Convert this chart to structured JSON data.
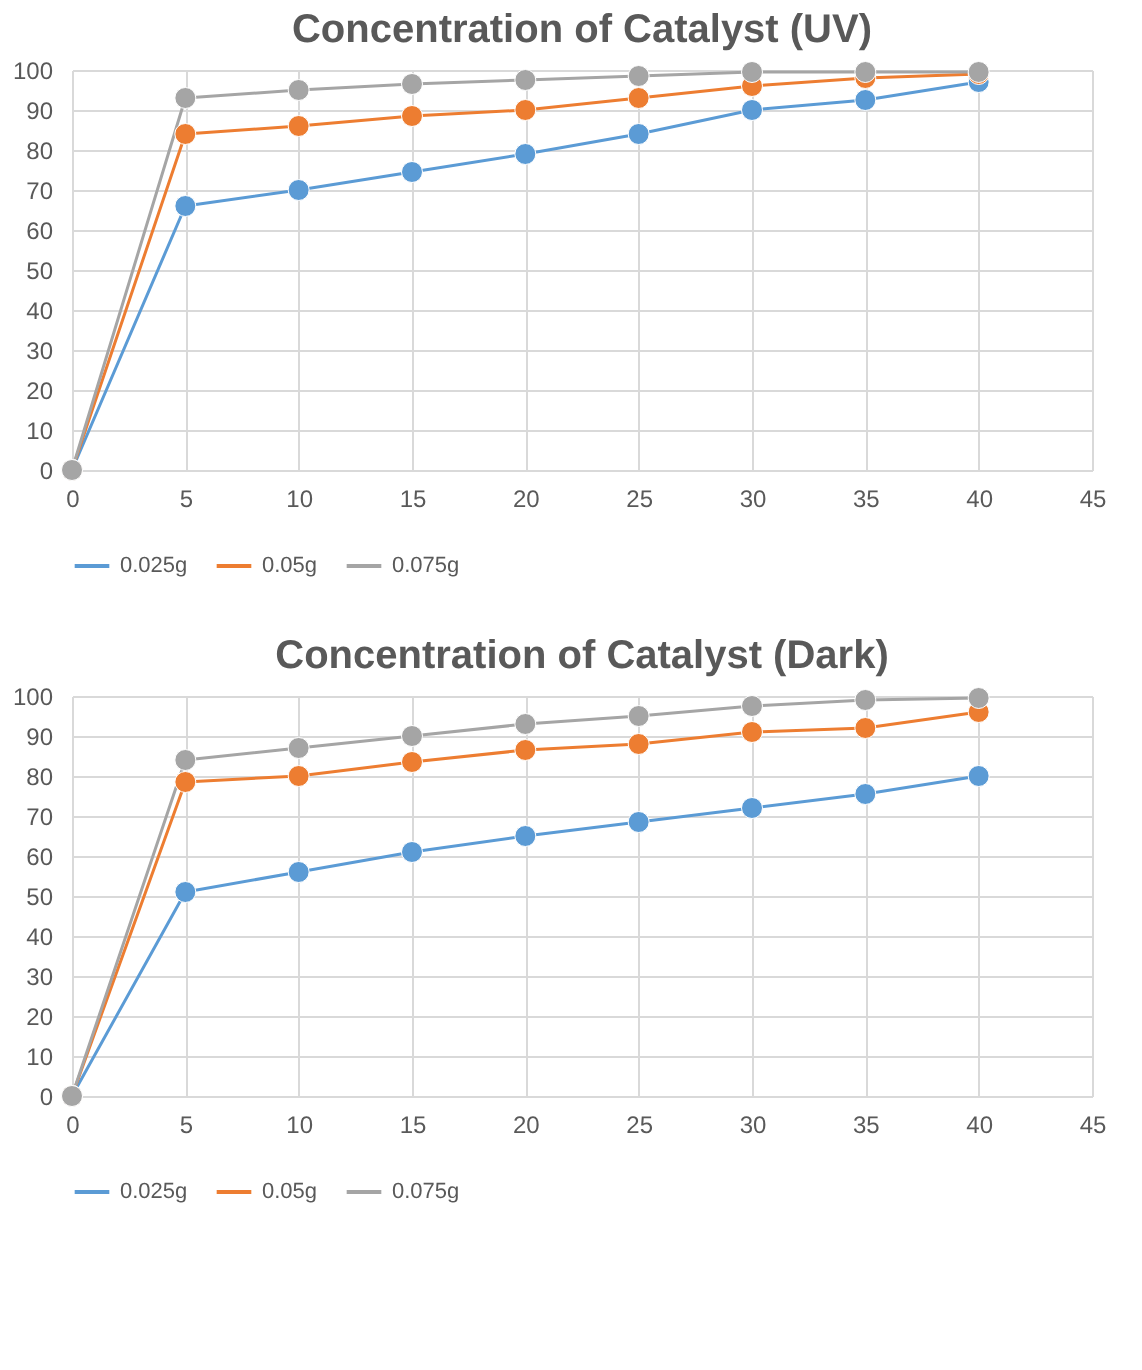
{
  "chart_data": [
    {
      "type": "line",
      "title": "Concentration of Catalyst (UV)",
      "x": [
        0,
        5,
        10,
        15,
        20,
        25,
        30,
        35,
        40
      ],
      "xlim": [
        0,
        45
      ],
      "xticks": [
        0,
        5,
        10,
        15,
        20,
        25,
        30,
        35,
        40,
        45
      ],
      "ylim": [
        0,
        100
      ],
      "yticks": [
        0,
        10,
        20,
        30,
        40,
        50,
        60,
        70,
        80,
        90,
        100
      ],
      "grid": true,
      "legend": "bottom",
      "marker": "circle",
      "line_style": "solid",
      "series": [
        {
          "name": "0.025g",
          "color": "#5b9bd5",
          "values": [
            0,
            66,
            70,
            74.5,
            79,
            84,
            90,
            92.5,
            97
          ]
        },
        {
          "name": "0.05g",
          "color": "#ed7d31",
          "values": [
            0,
            84,
            86,
            88.5,
            90,
            93,
            96,
            98,
            99
          ]
        },
        {
          "name": "0.075g",
          "color": "#a5a5a5",
          "values": [
            0,
            93,
            95,
            96.5,
            97.5,
            98.5,
            99.5,
            99.5,
            99.5
          ]
        }
      ]
    },
    {
      "type": "line",
      "title": "Concentration of Catalyst (Dark)",
      "x": [
        0,
        5,
        10,
        15,
        20,
        25,
        30,
        35,
        40
      ],
      "xlim": [
        0,
        45
      ],
      "xticks": [
        0,
        5,
        10,
        15,
        20,
        25,
        30,
        35,
        40,
        45
      ],
      "ylim": [
        0,
        100
      ],
      "yticks": [
        0,
        10,
        20,
        30,
        40,
        50,
        60,
        70,
        80,
        90,
        100
      ],
      "grid": true,
      "legend": "bottom",
      "marker": "circle",
      "line_style": "solid",
      "series": [
        {
          "name": "0.025g",
          "color": "#5b9bd5",
          "values": [
            0,
            51,
            56,
            61,
            65,
            68.5,
            72,
            75.5,
            80
          ]
        },
        {
          "name": "0.05g",
          "color": "#ed7d31",
          "values": [
            0,
            78.5,
            80,
            83.5,
            86.5,
            88,
            91,
            92,
            96
          ]
        },
        {
          "name": "0.075g",
          "color": "#a5a5a5",
          "values": [
            0,
            84,
            87,
            90,
            93,
            95,
            97.5,
            99,
            99.5
          ]
        }
      ]
    }
  ]
}
